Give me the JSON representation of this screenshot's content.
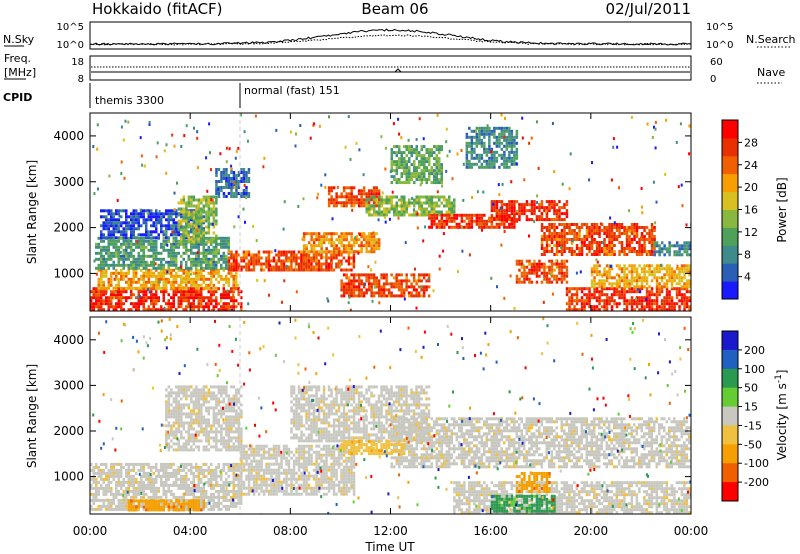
{
  "header": {
    "station": "Hokkaido (fitACF)",
    "beam": "Beam 06",
    "date": "02/Jul/2011"
  },
  "time_axis": {
    "label": "Time UT",
    "ticks": [
      "00:00",
      "04:00",
      "08:00",
      "12:00",
      "16:00",
      "20:00",
      "00:00"
    ],
    "range_hours": [
      0,
      24
    ]
  },
  "top_panels": {
    "nsky": {
      "left_label": "N.Sky",
      "right_label": "N.Search",
      "left_ticks": [
        "10^5",
        "10^0"
      ],
      "right_ticks": [
        "10^5",
        "10^0"
      ]
    },
    "freq": {
      "left_label_line1": "Freq.",
      "left_label_line2": "[MHz]",
      "right_label": "Nave",
      "left_ticks": [
        "18",
        "8"
      ],
      "right_ticks": [
        "60",
        "0"
      ]
    },
    "cpid": {
      "label": "CPID",
      "modes": [
        {
          "start_hour": 0.0,
          "text": "themis 3300"
        },
        {
          "start_hour": 5.95,
          "text": "normal (fast) 151"
        }
      ]
    }
  },
  "chart_data": [
    {
      "type": "heatmap",
      "panel": "power",
      "ylabel": "Slant Range [km]",
      "yticks": [
        "1000",
        "2000",
        "3000",
        "4000"
      ],
      "ylim_km": [
        180,
        4500
      ],
      "colorbar": {
        "label": "Power [dB]",
        "ticks": [
          "4",
          "8",
          "12",
          "16",
          "20",
          "24",
          "28"
        ],
        "range": [
          0,
          32
        ],
        "colors": [
          "#1a1aff",
          "#2b5fb5",
          "#3f8a8a",
          "#4ea05a",
          "#88b840",
          "#d8c020",
          "#f5a000",
          "#f06000",
          "#e83000",
          "#ff0000"
        ]
      },
      "regions": [
        {
          "t0": 0.0,
          "t1": 6.0,
          "r0": 200,
          "r1": 700,
          "power": 28
        },
        {
          "t0": 0.3,
          "t1": 5.8,
          "r0": 700,
          "r1": 1100,
          "power": 20
        },
        {
          "t0": 0.2,
          "t1": 5.5,
          "r0": 1100,
          "r1": 1800,
          "power": 10
        },
        {
          "t0": 0.4,
          "t1": 4.5,
          "r0": 1800,
          "r1": 2400,
          "power": 4
        },
        {
          "t0": 3.5,
          "t1": 5.0,
          "r0": 1700,
          "r1": 2700,
          "power": 14
        },
        {
          "t0": 5.0,
          "t1": 6.3,
          "r0": 2700,
          "r1": 3300,
          "power": 6
        },
        {
          "t0": 5.5,
          "t1": 10.5,
          "r0": 1100,
          "r1": 1500,
          "power": 26
        },
        {
          "t0": 8.5,
          "t1": 11.5,
          "r0": 1500,
          "r1": 1900,
          "power": 22
        },
        {
          "t0": 9.5,
          "t1": 11.5,
          "r0": 2500,
          "r1": 2900,
          "power": 26
        },
        {
          "t0": 10.0,
          "t1": 13.5,
          "r0": 500,
          "r1": 1000,
          "power": 26
        },
        {
          "t0": 11.0,
          "t1": 14.5,
          "r0": 2300,
          "r1": 2700,
          "power": 14
        },
        {
          "t0": 13.5,
          "t1": 17.0,
          "r0": 2000,
          "r1": 2300,
          "power": 28
        },
        {
          "t0": 16.0,
          "t1": 19.0,
          "r0": 2200,
          "r1": 2600,
          "power": 28
        },
        {
          "t0": 17.0,
          "t1": 19.0,
          "r0": 800,
          "r1": 1300,
          "power": 26
        },
        {
          "t0": 18.0,
          "t1": 22.5,
          "r0": 1400,
          "r1": 2100,
          "power": 26
        },
        {
          "t0": 19.0,
          "t1": 24.0,
          "r0": 200,
          "r1": 700,
          "power": 28
        },
        {
          "t0": 20.0,
          "t1": 24.0,
          "r0": 700,
          "r1": 1200,
          "power": 20
        },
        {
          "t0": 22.5,
          "t1": 24.0,
          "r0": 1400,
          "r1": 1700,
          "power": 8
        },
        {
          "t0": 12.0,
          "t1": 14.0,
          "r0": 3000,
          "r1": 3800,
          "power": 12
        },
        {
          "t0": 15.0,
          "t1": 17.0,
          "r0": 3300,
          "r1": 4200,
          "power": 8
        }
      ]
    },
    {
      "type": "heatmap",
      "panel": "velocity",
      "ylabel": "Slant Range [km]",
      "yticks": [
        "1000",
        "2000",
        "3000",
        "4000"
      ],
      "ylim_km": [
        180,
        4500
      ],
      "colorbar": {
        "label": "Velocity [m s^-1]",
        "ticks": [
          "200",
          "100",
          "50",
          "15",
          "-15",
          "-50",
          "-100",
          "-200"
        ],
        "colors": [
          "#1a1acc",
          "#2060c0",
          "#2a9a50",
          "#66cc33",
          "#c8c8c0",
          "#f0c040",
          "#f5a000",
          "#f06000",
          "#ff0000"
        ]
      },
      "regions": [
        {
          "t0": 0.0,
          "t1": 6.0,
          "r0": 300,
          "r1": 1300,
          "velocity": 0
        },
        {
          "t0": 3.0,
          "t1": 6.0,
          "r0": 1600,
          "r1": 3000,
          "velocity": 0
        },
        {
          "t0": 6.0,
          "t1": 10.5,
          "r0": 600,
          "r1": 1700,
          "velocity": 0
        },
        {
          "t0": 8.0,
          "t1": 13.5,
          "r0": 1800,
          "r1": 3000,
          "velocity": 0
        },
        {
          "t0": 12.0,
          "t1": 24.0,
          "r0": 1200,
          "r1": 2300,
          "velocity": 0
        },
        {
          "t0": 14.5,
          "t1": 24.0,
          "r0": 200,
          "r1": 900,
          "velocity": 0
        },
        {
          "t0": 17.0,
          "t1": 18.3,
          "r0": 700,
          "r1": 1100,
          "velocity": -80
        },
        {
          "t0": 16.0,
          "t1": 18.5,
          "r0": 250,
          "r1": 600,
          "velocity": 60
        },
        {
          "t0": 1.5,
          "t1": 4.5,
          "r0": 250,
          "r1": 500,
          "velocity": -50
        },
        {
          "t0": 10.0,
          "t1": 12.5,
          "r0": 1500,
          "r1": 1800,
          "velocity": -40
        }
      ]
    }
  ]
}
